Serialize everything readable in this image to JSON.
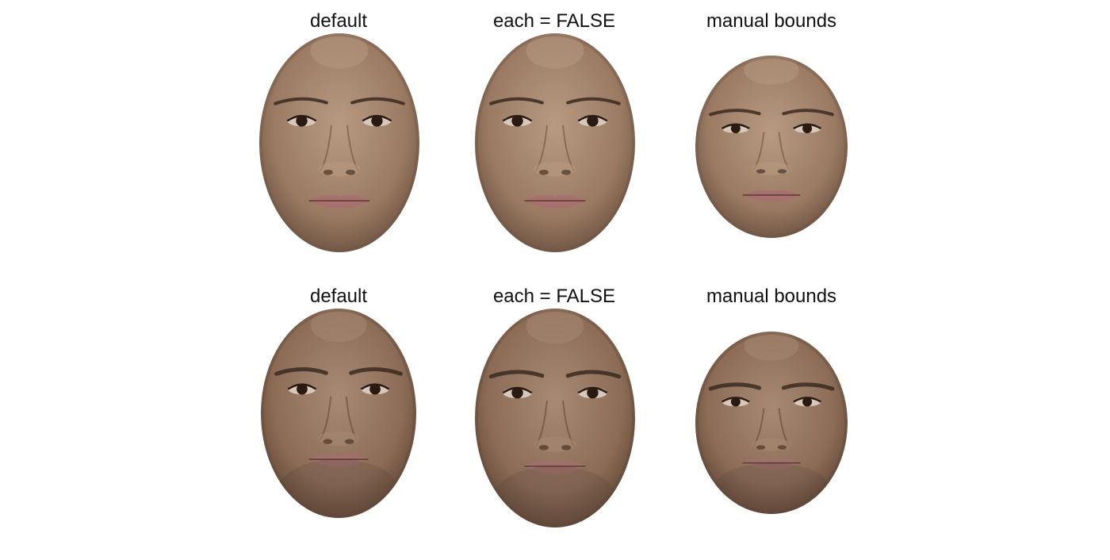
{
  "rows": [
    {
      "id": "female",
      "panels": [
        {
          "label": "default",
          "skin": "#9a7a62",
          "skin_light": "#b89a82",
          "skin_dark": "#6e5444",
          "lip": "#a86f6f"
        },
        {
          "label": "each = FALSE",
          "skin": "#9a7a62",
          "skin_light": "#b89a82",
          "skin_dark": "#6e5444",
          "lip": "#a86f6f"
        },
        {
          "label": "manual bounds",
          "skin": "#9a7a62",
          "skin_light": "#b89a82",
          "skin_dark": "#6e5444",
          "lip": "#a86f6f"
        }
      ]
    },
    {
      "id": "male",
      "panels": [
        {
          "label": "default",
          "skin": "#8c6c56",
          "skin_light": "#a88a74",
          "skin_dark": "#624838",
          "lip": "#a0716a"
        },
        {
          "label": "each = FALSE",
          "skin": "#8c6c56",
          "skin_light": "#a88a74",
          "skin_dark": "#624838",
          "lip": "#a0716a"
        },
        {
          "label": "manual bounds",
          "skin": "#8c6c56",
          "skin_light": "#a88a74",
          "skin_dark": "#624838",
          "lip": "#a0716a"
        }
      ]
    }
  ]
}
